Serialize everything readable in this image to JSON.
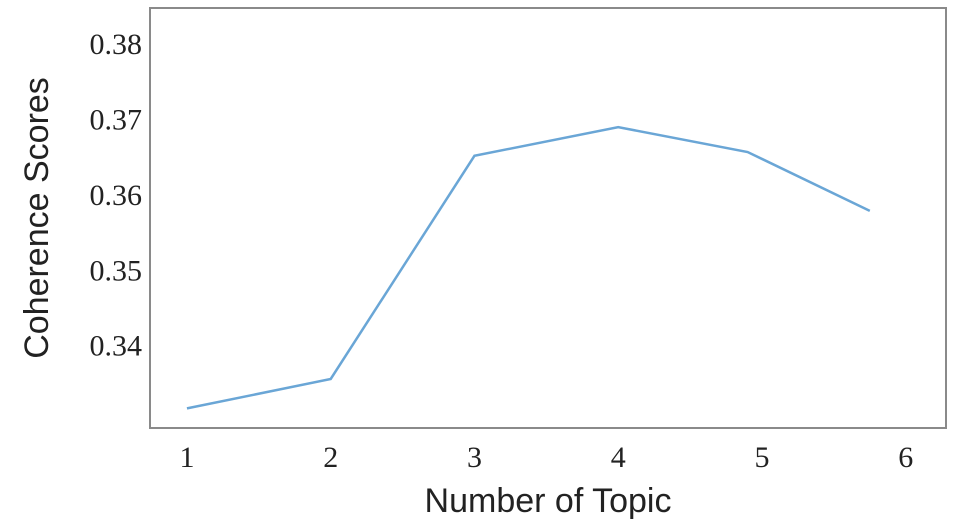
{
  "chart_data": {
    "type": "line",
    "x_label": "Number of Topic",
    "y_label": "Coherence Scores",
    "x": [
      1,
      2,
      3,
      4,
      4.9,
      5.75
    ],
    "series": [
      {
        "color": "#6aa6d6",
        "values": [
          0.3321,
          0.336,
          0.3656,
          0.3694,
          0.3661,
          0.3583
        ]
      }
    ],
    "xlim": [
      0.743,
      6.28
    ],
    "ylim": [
      0.3295,
      0.3852
    ],
    "xticks": [
      1,
      2,
      3,
      4,
      5,
      6
    ],
    "yticks": [
      0.34,
      0.35,
      0.36,
      0.37,
      0.38
    ],
    "grid": false
  }
}
